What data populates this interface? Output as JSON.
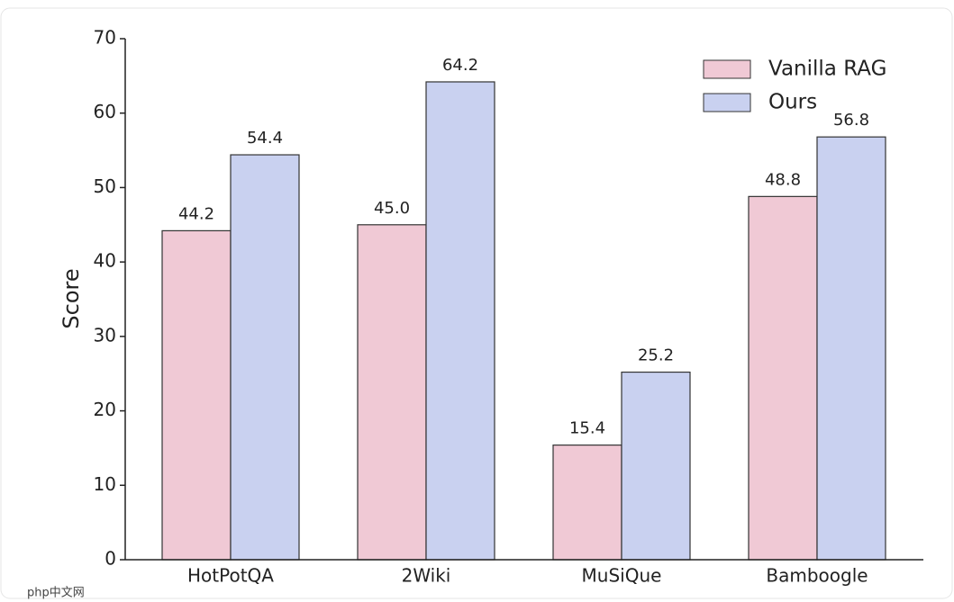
{
  "chart_data": {
    "type": "bar",
    "ylabel": "Score",
    "categories": [
      "HotPotQA",
      "2Wiki",
      "MuSiQue",
      "Bamboogle"
    ],
    "series": [
      {
        "name": "Vanilla RAG",
        "color": "#f0c9d5",
        "values": [
          44.2,
          45.0,
          15.4,
          48.8
        ],
        "value_labels": [
          "44.2",
          "45.0",
          "15.4",
          "48.8"
        ]
      },
      {
        "name": "Ours",
        "color": "#c9d1f0",
        "values": [
          54.4,
          64.2,
          25.2,
          56.8
        ]
      }
    ],
    "ylim": [
      0,
      70
    ],
    "yticks": [
      0,
      10,
      20,
      30,
      40,
      50,
      60,
      70
    ],
    "grid": false,
    "legend": "upper right"
  },
  "watermark": "php中文网"
}
